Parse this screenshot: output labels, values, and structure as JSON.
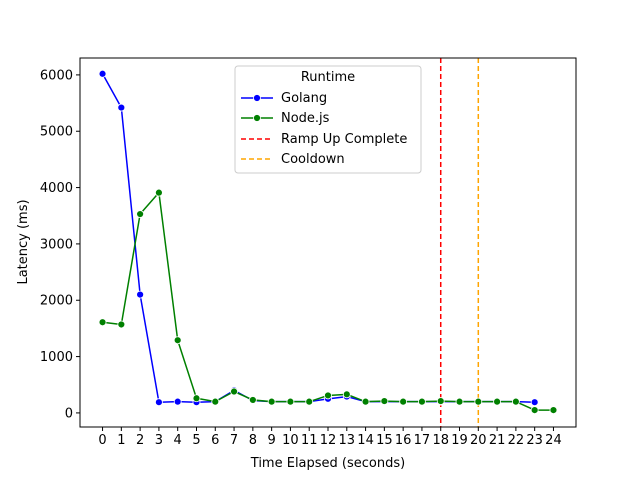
{
  "chart_data": {
    "type": "line",
    "xlabel": "Time Elapsed (seconds)",
    "ylabel": "Latency (ms)",
    "xlim": [
      -1.2,
      25.2
    ],
    "ylim": [
      -250,
      6300
    ],
    "xticks": [
      0,
      1,
      2,
      3,
      4,
      5,
      6,
      7,
      8,
      9,
      10,
      11,
      12,
      13,
      14,
      15,
      16,
      17,
      18,
      19,
      20,
      21,
      22,
      23,
      24
    ],
    "yticks": [
      0,
      1000,
      2000,
      3000,
      4000,
      5000,
      6000
    ],
    "grid": false,
    "legend": {
      "title": "Runtime",
      "placement": "top-center"
    },
    "series": [
      {
        "name": "Golang",
        "color": "#0000ff",
        "marker": "circle",
        "x": [
          0,
          1,
          2,
          3,
          4,
          5,
          6,
          7,
          8,
          9,
          10,
          11,
          12,
          13,
          14,
          15,
          16,
          17,
          18,
          19,
          20,
          21,
          22,
          23
        ],
        "values": [
          6020,
          5420,
          2100,
          190,
          200,
          190,
          200,
          400,
          220,
          200,
          200,
          200,
          250,
          290,
          200,
          200,
          200,
          200,
          200,
          200,
          200,
          200,
          200,
          190
        ]
      },
      {
        "name": "Node.js",
        "color": "#008000",
        "marker": "circle",
        "x": [
          0,
          1,
          2,
          3,
          4,
          5,
          6,
          7,
          8,
          9,
          10,
          11,
          12,
          13,
          14,
          15,
          16,
          17,
          18,
          19,
          20,
          21,
          22,
          23,
          24
        ],
        "values": [
          1610,
          1570,
          3530,
          3910,
          1290,
          260,
          200,
          380,
          230,
          200,
          200,
          200,
          310,
          330,
          200,
          210,
          200,
          200,
          210,
          200,
          200,
          200,
          200,
          50,
          50
        ]
      }
    ],
    "vlines": [
      {
        "name": "Ramp Up Complete",
        "x": 18,
        "color": "#ff0000",
        "style": "dashed"
      },
      {
        "name": "Cooldown",
        "x": 20,
        "color": "#ffa500",
        "style": "dashed"
      }
    ]
  }
}
